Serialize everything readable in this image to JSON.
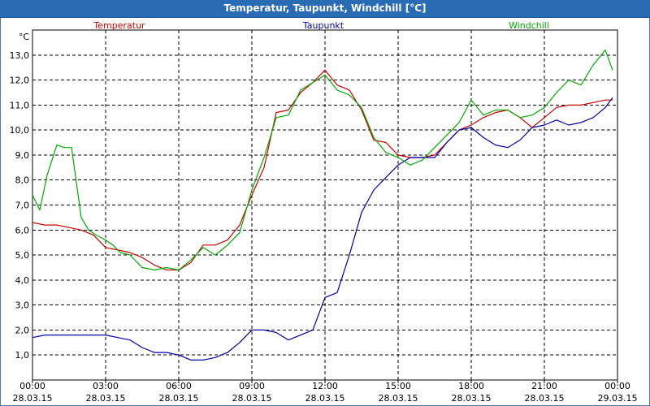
{
  "window": {
    "title": "Temperatur, Taupunkt, Windchill [°C]"
  },
  "chart_data": {
    "type": "line",
    "title": "Temperatur, Taupunkt, Windchill [°C]",
    "ylabel": "°C",
    "xlabel": "",
    "ylim": [
      0,
      14
    ],
    "xlim": [
      0,
      24
    ],
    "grid": true,
    "legend_placement": "top",
    "y_ticks": [
      "1,0",
      "2,0",
      "3,0",
      "4,0",
      "5,0",
      "6,0",
      "7,0",
      "8,0",
      "9,0",
      "10,0",
      "11,0",
      "12,0",
      "13,0"
    ],
    "y_tick_values": [
      1,
      2,
      3,
      4,
      5,
      6,
      7,
      8,
      9,
      10,
      11,
      12,
      13
    ],
    "x_ticks": [
      {
        "time": "00:00",
        "date": "28.03.15"
      },
      {
        "time": "03:00",
        "date": "28.03.15"
      },
      {
        "time": "06:00",
        "date": "28.03.15"
      },
      {
        "time": "09:00",
        "date": "28.03.15"
      },
      {
        "time": "12:00",
        "date": "28.03.15"
      },
      {
        "time": "15:00",
        "date": "28.03.15"
      },
      {
        "time": "18:00",
        "date": "28.03.15"
      },
      {
        "time": "21:00",
        "date": "28.03.15"
      },
      {
        "time": "00:00",
        "date": "29.03.15"
      }
    ],
    "x_tick_hours": [
      0,
      3,
      6,
      9,
      12,
      15,
      18,
      21,
      24
    ],
    "series": [
      {
        "name": "Temperatur",
        "color": "#cc0000",
        "x": [
          0,
          0.5,
          1,
          1.5,
          2,
          2.5,
          3,
          3.5,
          4,
          4.5,
          5,
          5.5,
          6,
          6.5,
          7,
          7.5,
          8,
          8.5,
          9,
          9.5,
          10,
          10.5,
          11,
          11.5,
          12,
          12.5,
          13,
          13.5,
          14,
          14.5,
          15,
          15.5,
          16,
          16.5,
          17,
          17.5,
          18,
          18.5,
          19,
          19.5,
          20,
          20.5,
          21,
          21.5,
          22,
          22.5,
          23,
          23.5,
          23.8
        ],
        "values": [
          6.3,
          6.2,
          6.2,
          6.1,
          6.0,
          5.8,
          5.3,
          5.2,
          5.1,
          4.9,
          4.6,
          4.4,
          4.4,
          4.7,
          5.4,
          5.4,
          5.6,
          6.2,
          7.4,
          8.5,
          10.7,
          10.8,
          11.5,
          11.9,
          12.4,
          11.8,
          11.6,
          10.8,
          9.6,
          9.5,
          9.0,
          8.9,
          8.9,
          9.0,
          9.5,
          10.0,
          10.2,
          10.5,
          10.7,
          10.8,
          10.5,
          10.1,
          10.5,
          10.9,
          11.0,
          11.0,
          11.1,
          11.2,
          11.2
        ]
      },
      {
        "name": "Taupunkt",
        "color": "#0000aa",
        "x": [
          0,
          0.5,
          1,
          1.5,
          2,
          2.5,
          3,
          3.5,
          4,
          4.5,
          5,
          5.5,
          6,
          6.5,
          7,
          7.5,
          8,
          8.5,
          9,
          9.5,
          10,
          10.5,
          11,
          11.5,
          12,
          12.5,
          13,
          13.5,
          14,
          14.5,
          15,
          15.5,
          16,
          16.5,
          17,
          17.5,
          18,
          18.5,
          19,
          19.5,
          20,
          20.5,
          21,
          21.5,
          22,
          22.5,
          23,
          23.5,
          23.8
        ],
        "values": [
          1.7,
          1.8,
          1.8,
          1.8,
          1.8,
          1.8,
          1.8,
          1.7,
          1.6,
          1.3,
          1.1,
          1.1,
          1.0,
          0.8,
          0.8,
          0.9,
          1.1,
          1.5,
          2.0,
          2.0,
          1.9,
          1.6,
          1.8,
          2.0,
          3.3,
          3.5,
          5.0,
          6.7,
          7.6,
          8.1,
          8.6,
          8.9,
          8.9,
          8.9,
          9.5,
          10.0,
          10.1,
          9.7,
          9.4,
          9.3,
          9.6,
          10.1,
          10.2,
          10.4,
          10.2,
          10.3,
          10.5,
          10.9,
          11.3
        ]
      },
      {
        "name": "Windchill",
        "color": "#00aa00",
        "x": [
          0,
          0.3,
          0.6,
          1,
          1.3,
          1.6,
          2,
          2.3,
          2.6,
          3,
          3.3,
          3.6,
          4,
          4.5,
          5,
          5.5,
          6,
          6.5,
          7,
          7.5,
          8,
          8.5,
          9,
          9.5,
          10,
          10.5,
          11,
          11.5,
          12,
          12.5,
          13,
          13.5,
          14,
          14.5,
          15,
          15.5,
          16,
          16.5,
          17,
          17.5,
          18,
          18.5,
          19,
          19.5,
          20,
          20.5,
          21,
          21.5,
          22,
          22.5,
          23,
          23.5,
          23.8
        ],
        "values": [
          7.4,
          6.8,
          8.2,
          9.4,
          9.3,
          9.3,
          6.5,
          6.0,
          5.8,
          5.6,
          5.4,
          5.1,
          5.0,
          4.5,
          4.4,
          4.5,
          4.4,
          4.8,
          5.3,
          5.0,
          5.4,
          5.9,
          7.6,
          8.9,
          10.5,
          10.6,
          11.6,
          11.9,
          12.2,
          11.6,
          11.4,
          10.9,
          9.7,
          9.1,
          8.9,
          8.6,
          8.8,
          9.3,
          9.8,
          10.3,
          11.2,
          10.6,
          10.8,
          10.8,
          10.5,
          10.6,
          10.9,
          11.5,
          12.0,
          11.8,
          12.6,
          13.2,
          12.4
        ]
      }
    ]
  }
}
